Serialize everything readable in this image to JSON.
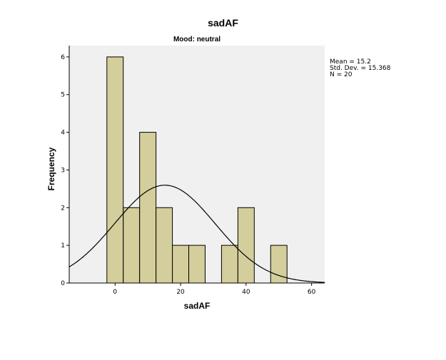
{
  "chart_data": {
    "type": "bar",
    "title": "sadAF",
    "subtitle": "Mood: neutral",
    "xlabel": "sadAF",
    "ylabel": "Frequency",
    "bin_width": 5,
    "bins": [
      {
        "start": -2.5,
        "end": 2.5,
        "count": 6
      },
      {
        "start": 2.5,
        "end": 7.5,
        "count": 2
      },
      {
        "start": 7.5,
        "end": 12.5,
        "count": 4
      },
      {
        "start": 12.5,
        "end": 17.5,
        "count": 2
      },
      {
        "start": 17.5,
        "end": 22.5,
        "count": 1
      },
      {
        "start": 22.5,
        "end": 27.5,
        "count": 1
      },
      {
        "start": 32.5,
        "end": 37.5,
        "count": 1
      },
      {
        "start": 37.5,
        "end": 42.5,
        "count": 2
      },
      {
        "start": 47.5,
        "end": 52.5,
        "count": 1
      }
    ],
    "xlim": [
      -14,
      64
    ],
    "ylim": [
      0,
      6.3
    ],
    "xticks": [
      0,
      20,
      40,
      60
    ],
    "yticks": [
      0,
      1,
      2,
      3,
      4,
      5,
      6
    ],
    "normal_curve": {
      "mean": 15.2,
      "std": 15.368,
      "n": 20
    },
    "stats": {
      "mean_text": "Mean = 15.2",
      "std_text": "Std. Dev. = 15.368",
      "n_text": "N = 20"
    },
    "colors": {
      "plot_bg": "#f0f0f0",
      "bar_fill": "#d3ce9b",
      "bar_stroke": "#000000",
      "curve": "#000000"
    }
  }
}
